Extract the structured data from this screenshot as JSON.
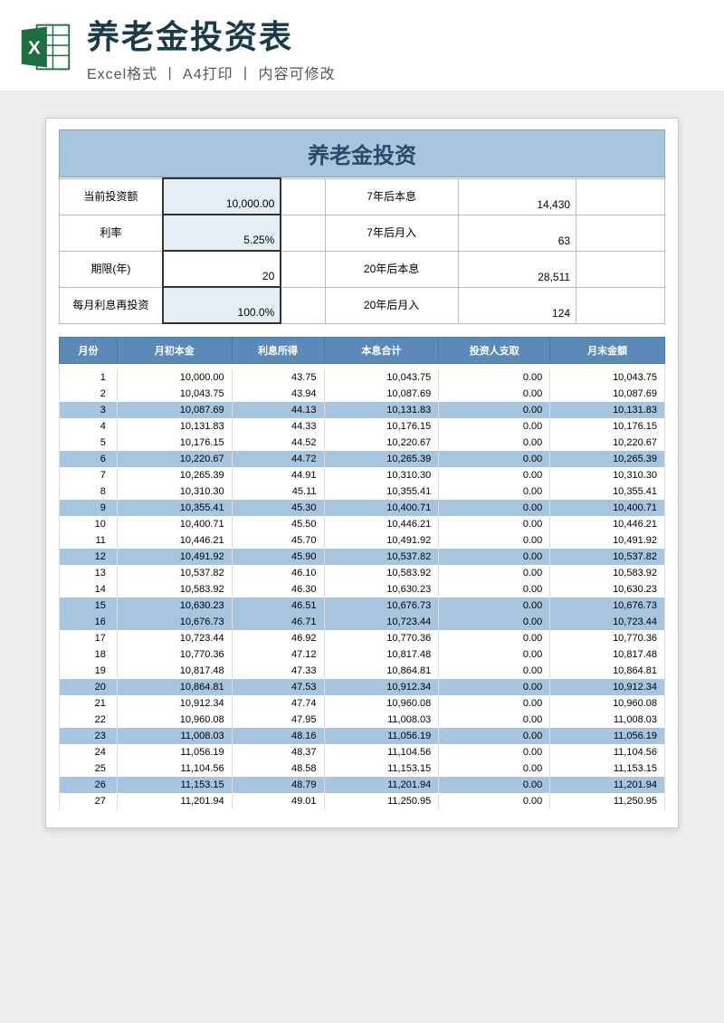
{
  "header": {
    "title": "养老金投资表",
    "subtitle": "Excel格式 丨 A4打印 丨 内容可修改"
  },
  "sheet": {
    "title": "养老金投资",
    "colors": {
      "header_bar": "#a7c5de",
      "header_text": "#2a4a6a",
      "th_bg": "#5b8ab8",
      "th_text": "#ffffff",
      "stripe_bg": "#a7c5de",
      "input_bg": "#e6eef5"
    },
    "params_left": [
      {
        "label": "当前投资额",
        "value": "10,000.00",
        "highlight": true
      },
      {
        "label": "利率",
        "value": "5.25%",
        "highlight": true
      },
      {
        "label": "期限(年)",
        "value": "20",
        "highlight": false
      },
      {
        "label": "每月利息再投资",
        "value": "100.0%",
        "highlight": true
      }
    ],
    "params_right": [
      {
        "label": "7年后本息",
        "value": "14,430"
      },
      {
        "label": "7年后月入",
        "value": "63"
      },
      {
        "label": "20年后本息",
        "value": "28,511"
      },
      {
        "label": "20年后月入",
        "value": "124"
      }
    ],
    "columns": [
      "月份",
      "月初本金",
      "利息所得",
      "本息合计",
      "投资人支取",
      "月末金额"
    ],
    "rows": [
      [
        1,
        "10,000.00",
        "43.75",
        "10,043.75",
        "0.00",
        "10,043.75"
      ],
      [
        2,
        "10,043.75",
        "43.94",
        "10,087.69",
        "0.00",
        "10,087.69"
      ],
      [
        3,
        "10,087.69",
        "44.13",
        "10,131.83",
        "0.00",
        "10,131.83"
      ],
      [
        4,
        "10,131.83",
        "44.33",
        "10,176.15",
        "0.00",
        "10,176.15"
      ],
      [
        5,
        "10,176.15",
        "44.52",
        "10,220.67",
        "0.00",
        "10,220.67"
      ],
      [
        6,
        "10,220.67",
        "44.72",
        "10,265.39",
        "0.00",
        "10,265.39"
      ],
      [
        7,
        "10,265.39",
        "44.91",
        "10,310.30",
        "0.00",
        "10,310.30"
      ],
      [
        8,
        "10,310.30",
        "45.11",
        "10,355.41",
        "0.00",
        "10,355.41"
      ],
      [
        9,
        "10,355.41",
        "45.30",
        "10,400.71",
        "0.00",
        "10,400.71"
      ],
      [
        10,
        "10,400.71",
        "45.50",
        "10,446.21",
        "0.00",
        "10,446.21"
      ],
      [
        11,
        "10,446.21",
        "45.70",
        "10,491.92",
        "0.00",
        "10,491.92"
      ],
      [
        12,
        "10,491.92",
        "45.90",
        "10,537.82",
        "0.00",
        "10,537.82"
      ],
      [
        13,
        "10,537.82",
        "46.10",
        "10,583.92",
        "0.00",
        "10,583.92"
      ],
      [
        14,
        "10,583.92",
        "46.30",
        "10,630.23",
        "0.00",
        "10,630.23"
      ],
      [
        15,
        "10,630.23",
        "46.51",
        "10,676.73",
        "0.00",
        "10,676.73"
      ],
      [
        16,
        "10,676.73",
        "46.71",
        "10,723.44",
        "0.00",
        "10,723.44"
      ],
      [
        17,
        "10,723.44",
        "46.92",
        "10,770.36",
        "0.00",
        "10,770.36"
      ],
      [
        18,
        "10,770.36",
        "47.12",
        "10,817.48",
        "0.00",
        "10,817.48"
      ],
      [
        19,
        "10,817.48",
        "47.33",
        "10,864.81",
        "0.00",
        "10,864.81"
      ],
      [
        20,
        "10,864.81",
        "47.53",
        "10,912.34",
        "0.00",
        "10,912.34"
      ],
      [
        21,
        "10,912.34",
        "47.74",
        "10,960.08",
        "0.00",
        "10,960.08"
      ],
      [
        22,
        "10,960.08",
        "47.95",
        "11,008.03",
        "0.00",
        "11,008.03"
      ],
      [
        23,
        "11,008.03",
        "48.16",
        "11,056.19",
        "0.00",
        "11,056.19"
      ],
      [
        24,
        "11,056.19",
        "48.37",
        "11,104.56",
        "0.00",
        "11,104.56"
      ],
      [
        25,
        "11,104.56",
        "48.58",
        "11,153.15",
        "0.00",
        "11,153.15"
      ],
      [
        26,
        "11,153.15",
        "48.79",
        "11,201.94",
        "0.00",
        "11,201.94"
      ],
      [
        27,
        "11,201.94",
        "49.01",
        "11,250.95",
        "0.00",
        "11,250.95"
      ]
    ],
    "stripe_rows": [
      3,
      6,
      9,
      12,
      15,
      16,
      20,
      23,
      26
    ]
  }
}
